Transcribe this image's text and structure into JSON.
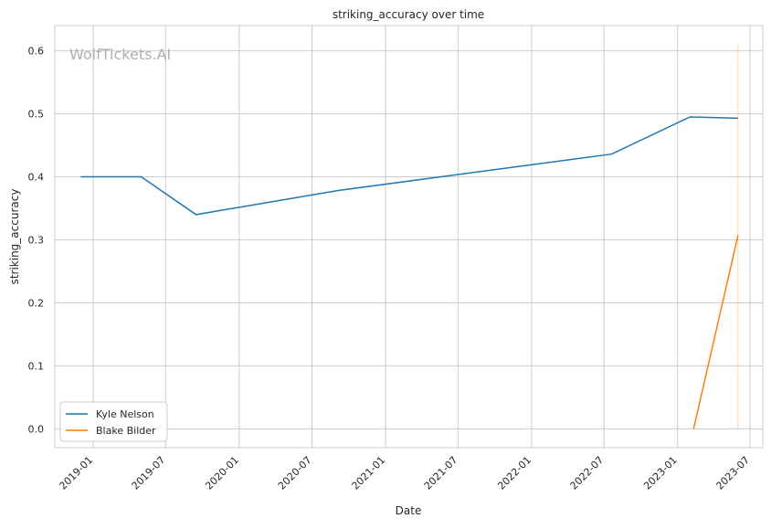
{
  "chart_data": {
    "type": "line",
    "title": "striking_accuracy over time",
    "xlabel": "Date",
    "ylabel": "striking_accuracy",
    "watermark": "WolfTickets.AI",
    "x_ticks": [
      "2019-01",
      "2019-07",
      "2020-01",
      "2020-07",
      "2021-01",
      "2021-07",
      "2022-01",
      "2022-07",
      "2023-01",
      "2023-07"
    ],
    "y_ticks": [
      0.0,
      0.1,
      0.2,
      0.3,
      0.4,
      0.5,
      0.6
    ],
    "y_tick_labels": [
      "0.0",
      "0.1",
      "0.2",
      "0.3",
      "0.4",
      "0.5",
      "0.6"
    ],
    "xlim": [
      "2018-09-27",
      "2023-08-02"
    ],
    "ylim": [
      -0.03,
      0.64
    ],
    "grid": true,
    "legend_position": "lower-left",
    "series": [
      {
        "name": "Kyle Nelson",
        "color": "#1f77b4",
        "x": [
          "2018-12-01",
          "2019-05-01",
          "2019-09-15",
          "2020-09-01",
          "2022-07-20",
          "2023-02-01",
          "2023-06-01"
        ],
        "y": [
          0.4,
          0.4,
          0.34,
          0.378,
          0.436,
          0.495,
          0.493
        ]
      },
      {
        "name": "Blake Bilder",
        "color": "#ff7f0e",
        "x": [
          "2023-02-10",
          "2023-06-01"
        ],
        "y": [
          0.0,
          0.307
        ]
      }
    ],
    "vertical_marker": {
      "x": "2023-06-01",
      "color": "#ff7f0e",
      "y_from": 0.0,
      "y_to": 0.61
    }
  }
}
